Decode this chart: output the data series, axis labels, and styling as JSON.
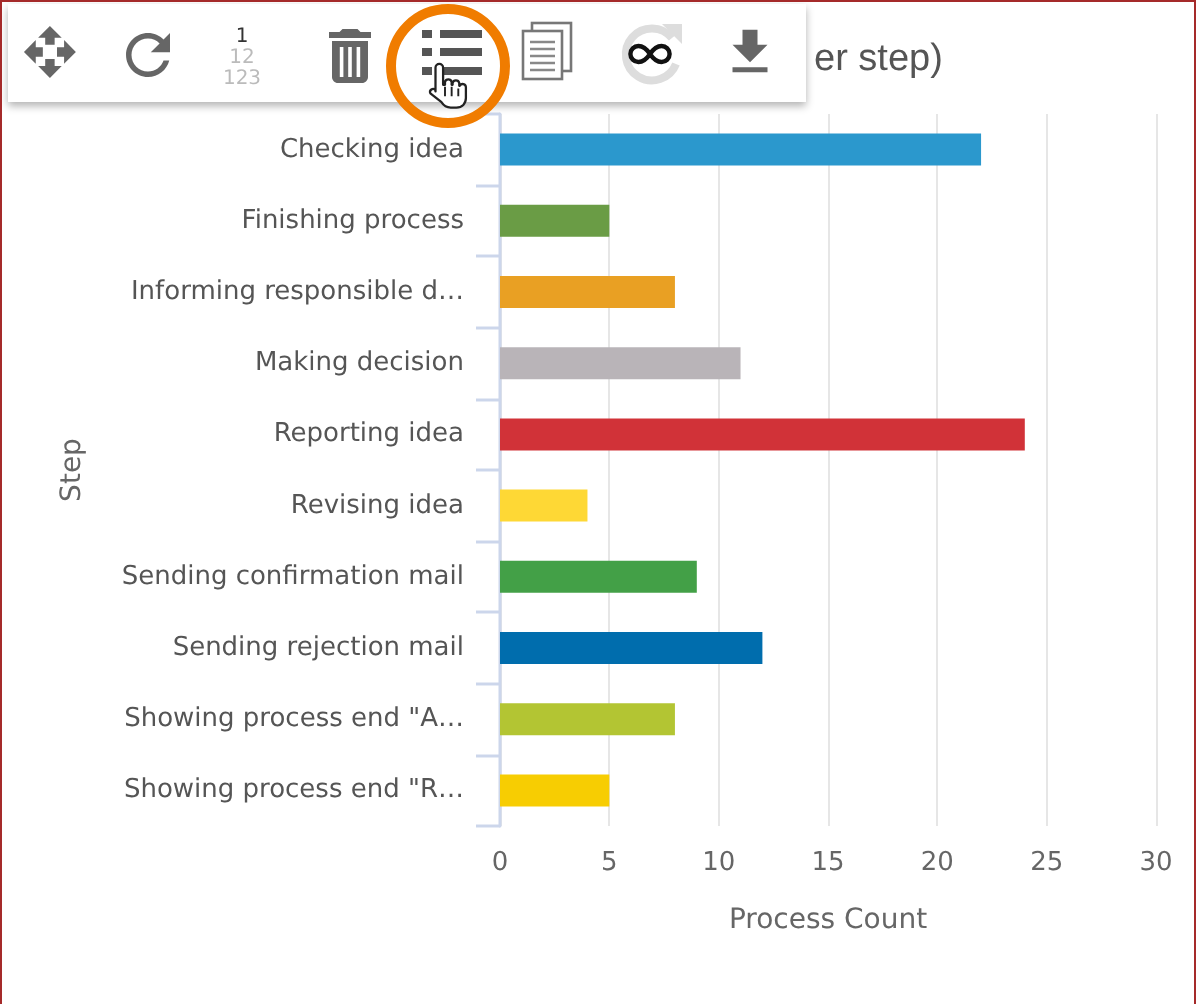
{
  "chart_data": {
    "type": "bar",
    "orientation": "horizontal",
    "title": "er step)",
    "xlabel": "Process Count",
    "ylabel": "Step",
    "categories": [
      "Checking idea",
      "Finishing process",
      "Informing responsible d…",
      "Making decision",
      "Reporting idea",
      "Revising idea",
      "Sending confirmation mail",
      "Sending rejection mail",
      "Showing process end \"A…",
      "Showing process end \"R…"
    ],
    "values": [
      22,
      5,
      8,
      11,
      24,
      4,
      9,
      12,
      8,
      5
    ],
    "colors": [
      "#2b98cd",
      "#6a9c45",
      "#e9a023",
      "#b9b4b8",
      "#d13238",
      "#fed835",
      "#43a047",
      "#006dad",
      "#b3c533",
      "#f7cd02"
    ],
    "xlim": [
      0,
      30
    ],
    "xticks": [
      0,
      5,
      10,
      15,
      20,
      25,
      30
    ],
    "grid": "x",
    "annotations": [
      "1",
      "12",
      "123"
    ]
  }
}
